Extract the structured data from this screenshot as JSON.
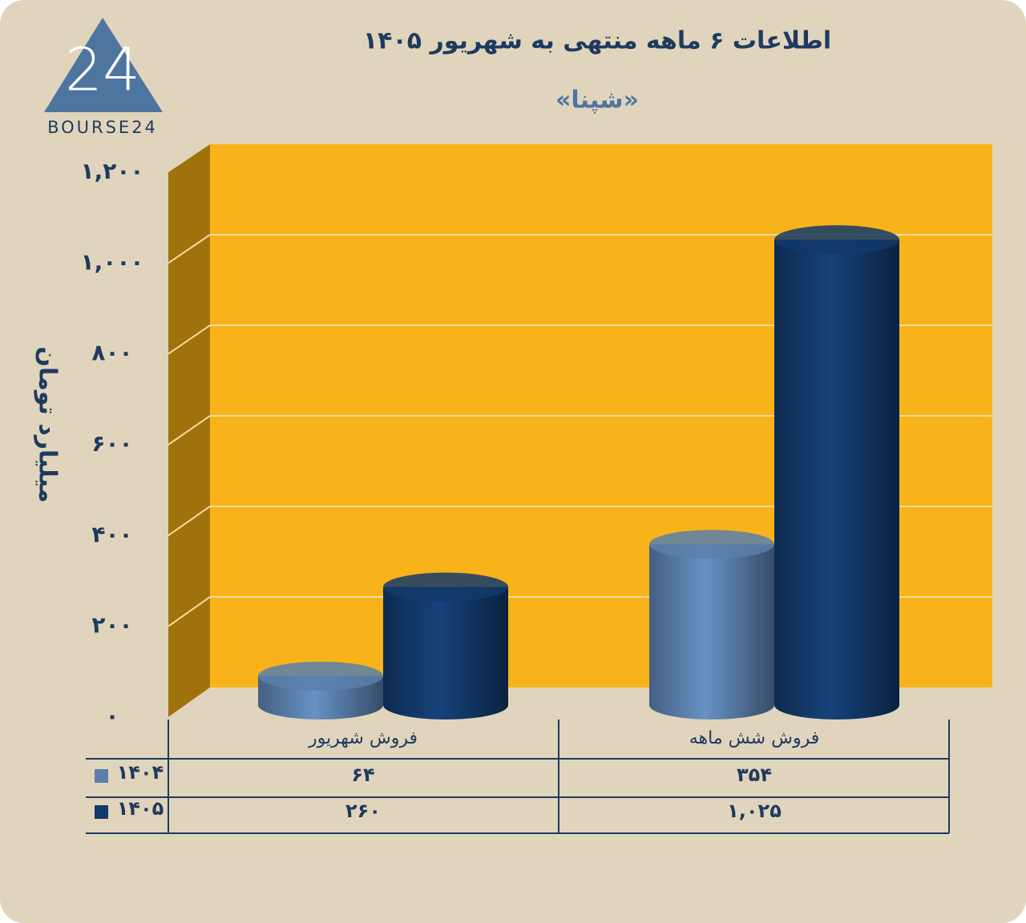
{
  "logo": {
    "mark": "24",
    "text": "BOURSE24"
  },
  "chart_data": {
    "type": "cylinder-bar",
    "title": "اطلاعات ۶ ماهه منتهی به شهریور ۱۴۰۵",
    "subtitle": "«شپنا»",
    "y_label": "میلیارد تومان",
    "categories": [
      "فروش شهریور",
      "فروش شش ماهه"
    ],
    "series": [
      {
        "name": "۱۴۰۴",
        "color": "#5a7fab",
        "values": [
          64,
          354
        ],
        "value_labels": [
          "۶۴",
          "۳۵۴"
        ]
      },
      {
        "name": "۱۴۰۵",
        "color": "#13396a",
        "values": [
          260,
          1025
        ],
        "value_labels": [
          "۲۶۰",
          "۱,۰۲۵"
        ]
      }
    ],
    "ylim": [
      0,
      1200
    ],
    "yticks": [
      {
        "value": 0,
        "label": "۰"
      },
      {
        "value": 200,
        "label": "۲۰۰"
      },
      {
        "value": 400,
        "label": "۴۰۰"
      },
      {
        "value": 600,
        "label": "۶۰۰"
      },
      {
        "value": 800,
        "label": "۸۰۰"
      },
      {
        "value": 1000,
        "label": "۱,۰۰۰"
      },
      {
        "value": 1200,
        "label": "۱,۲۰۰"
      }
    ],
    "grid": true,
    "wall_color": "#f8b31a"
  }
}
